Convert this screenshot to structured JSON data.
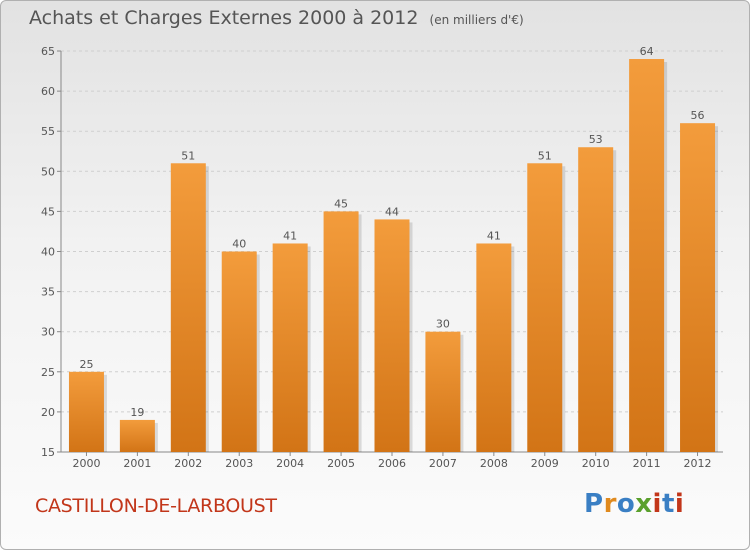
{
  "title": "Achats et Charges Externes 2000 à 2012",
  "unit_note": "(en milliers d'€)",
  "commune": "CASTILLON-DE-LARBOUST",
  "logo": {
    "text": "Proxiti",
    "letters": [
      "P",
      "r",
      "o",
      "x",
      "i",
      "t",
      "i"
    ],
    "colors": [
      "#3a7fc4",
      "#e08a1e",
      "#3a7fc4",
      "#5aa02c",
      "#c2361a",
      "#3a7fc4",
      "#c2361a"
    ]
  },
  "colors": {
    "bar": "#f39c3c",
    "bar_dark": "#d27416",
    "text": "#555555",
    "commune": "#c2361a"
  },
  "chart_data": {
    "type": "bar",
    "categories": [
      "2000",
      "2001",
      "2002",
      "2003",
      "2004",
      "2005",
      "2006",
      "2007",
      "2008",
      "2009",
      "2010",
      "2011",
      "2012"
    ],
    "values": [
      25,
      19,
      51,
      40,
      41,
      45,
      44,
      30,
      41,
      51,
      53,
      64,
      56
    ],
    "title": "Achats et Charges Externes 2000 à 2012",
    "xlabel": "",
    "ylabel": "",
    "ylim": [
      15,
      65
    ],
    "yticks": [
      15,
      20,
      25,
      30,
      35,
      40,
      45,
      50,
      55,
      60,
      65
    ],
    "grid": true
  }
}
